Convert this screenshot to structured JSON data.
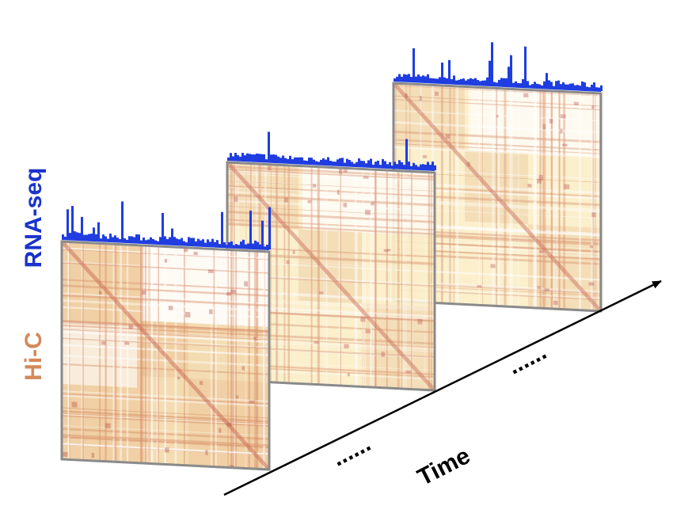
{
  "labels": {
    "rna_seq": "RNA-seq",
    "hi_c": "Hi-C",
    "time": "Time",
    "ellipsis_left": "......",
    "ellipsis_right": "......"
  }
}
